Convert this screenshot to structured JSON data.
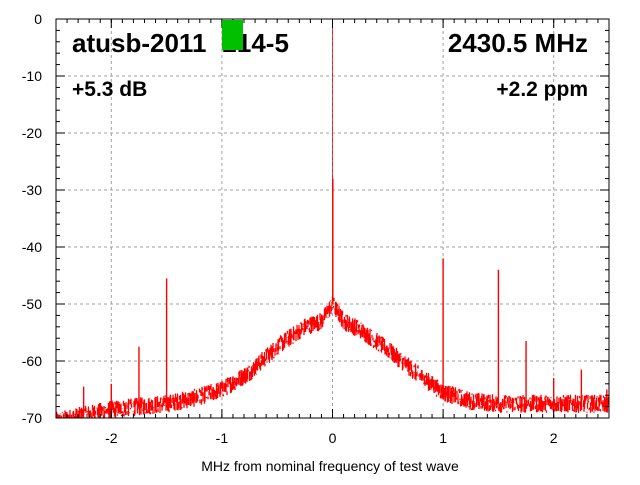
{
  "chart_data": {
    "type": "line",
    "title_left": "atusb-2011",
    "title_left_suffix": "214-5",
    "title_right": "2430.5 MHz",
    "sub_left": "+5.3 dB",
    "sub_right": "+2.2 ppm",
    "xlabel": "MHz from nominal frequency of test wave",
    "ylabel": "",
    "xlim": [
      -2.5,
      2.5
    ],
    "ylim": [
      -70,
      0
    ],
    "xticks": [
      -2,
      -1,
      0,
      1,
      2
    ],
    "xtick_labels": [
      "-2",
      "-1",
      "0",
      "1",
      "2"
    ],
    "yticks": [
      0,
      -10,
      -20,
      -30,
      -40,
      -50,
      -60,
      -70
    ],
    "ytick_labels": [
      "0",
      "-10",
      "-20",
      "-30",
      "-40",
      "-50",
      "-60",
      "-70"
    ],
    "grid": true,
    "series_color": "#ff0000",
    "redaction_color": "#00c000",
    "noise_floor": {
      "x": [
        -2.5,
        -2.25,
        -2,
        -1.75,
        -1.5,
        -1.25,
        -1,
        -0.75,
        -0.5,
        -0.25,
        -0.1,
        0,
        0.1,
        0.25,
        0.5,
        0.75,
        1,
        1.25,
        1.5,
        2,
        2.5
      ],
      "y": [
        -70.5,
        -69.5,
        -68.5,
        -68,
        -67.5,
        -66.5,
        -65,
        -62,
        -57.5,
        -54,
        -53,
        -50,
        -53,
        -54.5,
        -58,
        -62,
        -65.5,
        -67,
        -67.5,
        -67.5,
        -67.5
      ]
    },
    "spurs": [
      {
        "x": 0,
        "y": 0
      },
      {
        "x": 0.003,
        "y": -28
      },
      {
        "x": -2.25,
        "y": -64.5
      },
      {
        "x": -2,
        "y": -64
      },
      {
        "x": -1.75,
        "y": -57.5
      },
      {
        "x": -1.5,
        "y": -45.5
      },
      {
        "x": 1,
        "y": -42
      },
      {
        "x": 1.5,
        "y": -44
      },
      {
        "x": 1.75,
        "y": -56.5
      },
      {
        "x": 2,
        "y": -63
      },
      {
        "x": 2.25,
        "y": -61.5
      },
      {
        "x": 2.48,
        "y": -65
      }
    ]
  }
}
